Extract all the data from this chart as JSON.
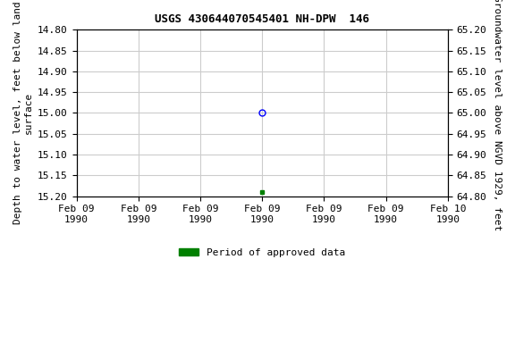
{
  "title": "USGS 430644070545401 NH-DPW  146",
  "ylabel_left": "Depth to water level, feet below land\nsurface",
  "ylabel_right": "Groundwater level above NGVD 1929, feet",
  "ylim_left": [
    15.2,
    14.8
  ],
  "ylim_right": [
    64.8,
    65.2
  ],
  "yticks_left": [
    14.8,
    14.85,
    14.9,
    14.95,
    15.0,
    15.05,
    15.1,
    15.15,
    15.2
  ],
  "yticks_right": [
    64.8,
    64.85,
    64.9,
    64.95,
    65.0,
    65.05,
    65.1,
    65.15,
    65.2
  ],
  "xlim": [
    0,
    6
  ],
  "xtick_positions": [
    0,
    1,
    2,
    3,
    4,
    5,
    6
  ],
  "xtick_labels": [
    "Feb 09\n1990",
    "Feb 09\n1990",
    "Feb 09\n1990",
    "Feb 09\n1990",
    "Feb 09\n1990",
    "Feb 09\n1990",
    "Feb 10\n1990"
  ],
  "data_point_x": 3,
  "data_point_y": 15.0,
  "data_point_color": "#0000ff",
  "data_point_marker": "o",
  "data_point_fillstyle": "none",
  "data_point_size": 5,
  "approved_point_x": 3,
  "approved_point_y": 15.19,
  "approved_point_color": "#008000",
  "approved_point_marker": "s",
  "approved_point_size": 3,
  "legend_label": "Period of approved data",
  "legend_color": "#008000",
  "background_color": "#ffffff",
  "grid_color": "#cccccc",
  "font_family": "monospace",
  "title_fontsize": 9,
  "tick_fontsize": 8,
  "label_fontsize": 8
}
